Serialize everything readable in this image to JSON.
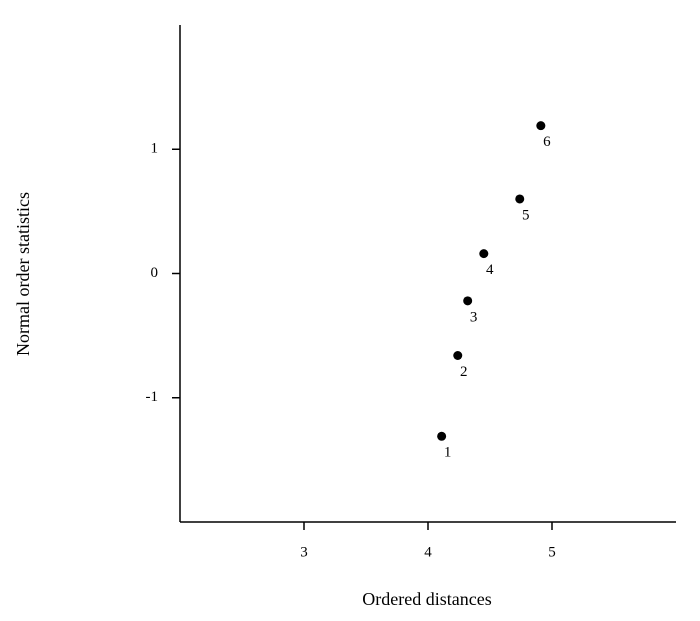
{
  "chart_data": {
    "type": "scatter",
    "x_label": "Ordered distances",
    "y_label": "Normal order statistics",
    "x": [
      4.11,
      4.24,
      4.32,
      4.45,
      4.74,
      4.91
    ],
    "values": [
      -1.31,
      -0.66,
      -0.22,
      0.16,
      0.6,
      1.19
    ],
    "point_labels": [
      "1",
      "2",
      "3",
      "4",
      "5",
      "6"
    ],
    "color": "#000000",
    "xlim": [
      2,
      6
    ],
    "ylim": [
      -2,
      2
    ],
    "xticks": [
      3,
      4,
      5
    ],
    "yticks": [
      -1,
      0,
      1
    ],
    "grid": false
  }
}
